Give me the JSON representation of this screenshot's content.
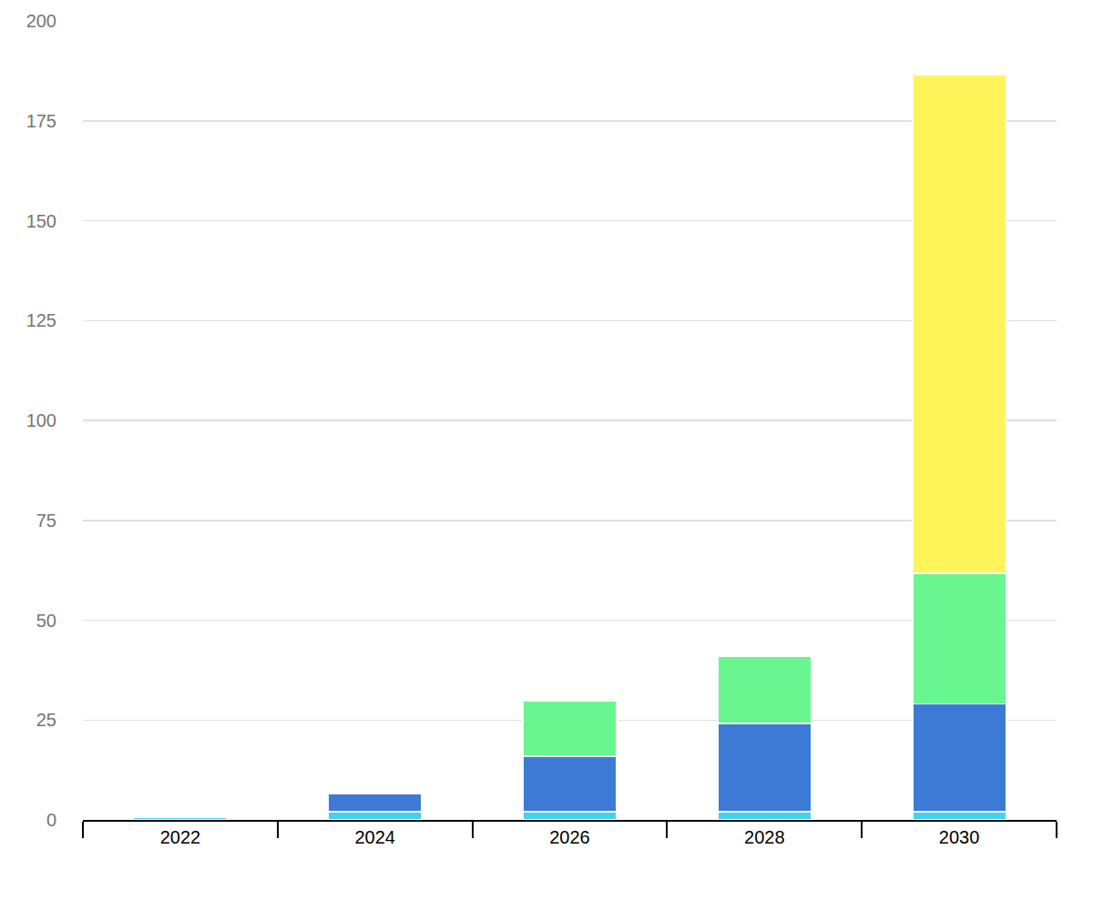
{
  "chart_data": {
    "type": "bar",
    "stacked": true,
    "grid": true,
    "categories": [
      "2022",
      "2024",
      "2026",
      "2028",
      "2030"
    ],
    "series": [
      {
        "color": "#3fd3ec",
        "values": [
          0.7,
          2,
          2,
          2,
          2
        ]
      },
      {
        "color": "#3d7ad6",
        "values": [
          0,
          4.6,
          13.9,
          22.1,
          27.1
        ]
      },
      {
        "color": "#69f691",
        "values": [
          0,
          0,
          13.8,
          16.8,
          32.6
        ]
      },
      {
        "color": "#fff45a",
        "values": [
          0,
          0,
          0,
          0,
          124.7
        ]
      }
    ],
    "ylim": [
      0,
      200
    ],
    "yticks": [
      0,
      25,
      50,
      75,
      100,
      125,
      150,
      175,
      200
    ]
  }
}
